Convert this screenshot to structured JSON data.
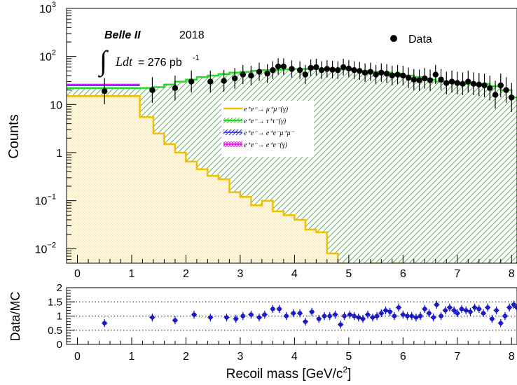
{
  "chart_data": [
    {
      "type": "histogram",
      "scale": "log",
      "xlim": [
        -0.2,
        8.1
      ],
      "ylim": [
        0.005,
        1000
      ],
      "ylabel": "Counts",
      "y_ticks": [
        {
          "value": 1000,
          "base": "10",
          "exp": "3"
        },
        {
          "value": 100,
          "base": "10",
          "exp": "2"
        },
        {
          "value": 10,
          "base": "10",
          "exp": ""
        },
        {
          "value": 1,
          "base": "1",
          "exp": ""
        },
        {
          "value": 0.1,
          "base": "10",
          "exp": "−1"
        },
        {
          "value": 0.01,
          "base": "10",
          "exp": "−2"
        }
      ],
      "x_ticks": [
        "0",
        "1",
        "2",
        "3",
        "4",
        "5",
        "6",
        "7",
        "8"
      ],
      "experiment_label": "Belle II",
      "year_label": "2018",
      "lumi": {
        "integral": "∫",
        "ldt": "Ldt",
        "value": "= 276 pb",
        "unit_exp": "-1"
      },
      "legend": {
        "data_label": "Data",
        "position": "top-right"
      },
      "stack_legend": [
        {
          "text": "e⁺e⁻→ μ⁺μ⁻(γ)",
          "color": "#f0c000",
          "fill": "#fff7dc",
          "style": "dots"
        },
        {
          "text": "e⁺e⁻→ τ⁺τ⁻(γ)",
          "color": "#22dd22",
          "fill": "#ffffff",
          "style": "hatch-green"
        },
        {
          "text": "e⁺e⁻→ e⁺e⁻μ⁺μ⁻",
          "color": "#2222dd",
          "fill": "#ffffff",
          "style": "hatch-blue"
        },
        {
          "text": "e⁺e⁻→ e⁺e⁻(γ)",
          "color": "#ee22ee",
          "fill": "#ffffff",
          "style": "grid-magenta"
        }
      ],
      "mumu_hist": {
        "bin_edges": [
          -0.2,
          1.15,
          1.4,
          1.6,
          1.8,
          2.0,
          2.2,
          2.4,
          2.6,
          2.8,
          3.0,
          3.2,
          3.4,
          3.6,
          3.8,
          4.0,
          4.2,
          4.4,
          4.6,
          4.8,
          5.0,
          5.2,
          5.4,
          5.6,
          5.8,
          6.0,
          8.1
        ],
        "values": [
          15,
          5.5,
          2.5,
          1.5,
          1.0,
          0.65,
          0.45,
          0.33,
          0.28,
          0.15,
          0.12,
          0.08,
          0.1,
          0.06,
          0.05,
          0.04,
          0.025,
          0.022,
          0.008,
          0.005,
          0.003,
          0.002,
          0.005,
          0.001,
          0.005,
          0.002
        ]
      },
      "total_hist": {
        "bin_edges": [
          -0.2,
          1.15,
          1.4,
          1.6,
          1.8,
          2.0,
          2.2,
          2.4,
          2.6,
          2.8,
          3.0,
          3.2,
          3.4,
          3.6,
          3.8,
          4.0,
          4.2,
          4.4,
          4.6,
          4.8,
          5.0,
          5.2,
          5.4,
          5.6,
          5.8,
          6.0,
          6.2,
          6.4,
          6.6,
          6.8,
          7.0,
          7.2,
          7.4,
          7.6,
          7.8,
          8.0,
          8.1
        ],
        "values": [
          22,
          22,
          23,
          26,
          30,
          33,
          37,
          40,
          43,
          46,
          48,
          50,
          52,
          53,
          54,
          55,
          55,
          55,
          55,
          54,
          52,
          50,
          48,
          46,
          44,
          40,
          37,
          33,
          30,
          28,
          27,
          27,
          27,
          24,
          20,
          14
        ]
      },
      "top_lines": {
        "pink": 26,
        "blue": 25,
        "green": 22
      },
      "data_points": [
        {
          "x": 0.5,
          "y": 19
        },
        {
          "x": 1.38,
          "y": 20
        },
        {
          "x": 1.8,
          "y": 22
        },
        {
          "x": 2.1,
          "y": 30
        },
        {
          "x": 2.45,
          "y": 30
        },
        {
          "x": 2.7,
          "y": 31
        },
        {
          "x": 2.9,
          "y": 35
        },
        {
          "x": 3.05,
          "y": 42
        },
        {
          "x": 3.2,
          "y": 40
        },
        {
          "x": 3.35,
          "y": 48
        },
        {
          "x": 3.5,
          "y": 44
        },
        {
          "x": 3.6,
          "y": 52
        },
        {
          "x": 3.7,
          "y": 62
        },
        {
          "x": 3.8,
          "y": 62
        },
        {
          "x": 3.95,
          "y": 55
        },
        {
          "x": 4.1,
          "y": 52
        },
        {
          "x": 4.2,
          "y": 42
        },
        {
          "x": 4.3,
          "y": 58
        },
        {
          "x": 4.4,
          "y": 60
        },
        {
          "x": 4.5,
          "y": 52
        },
        {
          "x": 4.6,
          "y": 55
        },
        {
          "x": 4.7,
          "y": 53
        },
        {
          "x": 4.8,
          "y": 52
        },
        {
          "x": 4.9,
          "y": 60
        },
        {
          "x": 5.0,
          "y": 56
        },
        {
          "x": 5.1,
          "y": 52
        },
        {
          "x": 5.2,
          "y": 50
        },
        {
          "x": 5.3,
          "y": 46
        },
        {
          "x": 5.4,
          "y": 48
        },
        {
          "x": 5.5,
          "y": 42
        },
        {
          "x": 5.6,
          "y": 46
        },
        {
          "x": 5.7,
          "y": 44
        },
        {
          "x": 5.8,
          "y": 40
        },
        {
          "x": 5.9,
          "y": 42
        },
        {
          "x": 6.0,
          "y": 40
        },
        {
          "x": 6.1,
          "y": 36
        },
        {
          "x": 6.2,
          "y": 33
        },
        {
          "x": 6.3,
          "y": 32
        },
        {
          "x": 6.4,
          "y": 35
        },
        {
          "x": 6.5,
          "y": 32
        },
        {
          "x": 6.6,
          "y": 42
        },
        {
          "x": 6.7,
          "y": 33
        },
        {
          "x": 6.8,
          "y": 28
        },
        {
          "x": 6.9,
          "y": 30
        },
        {
          "x": 7.0,
          "y": 28
        },
        {
          "x": 7.1,
          "y": 27
        },
        {
          "x": 7.2,
          "y": 30
        },
        {
          "x": 7.3,
          "y": 27
        },
        {
          "x": 7.4,
          "y": 26
        },
        {
          "x": 7.5,
          "y": 25
        },
        {
          "x": 7.6,
          "y": 22
        },
        {
          "x": 7.7,
          "y": 16
        },
        {
          "x": 7.8,
          "y": 25
        },
        {
          "x": 7.9,
          "y": 20
        },
        {
          "x": 8.0,
          "y": 14
        }
      ]
    },
    {
      "type": "scatter",
      "ylabel": "Data/MC",
      "xlabel": "Recoil mass [GeV/c",
      "xlabel_sup": "2",
      "xlabel_end": "]",
      "xlim": [
        -0.2,
        8.1
      ],
      "ylim": [
        0,
        2
      ],
      "y_ticks": [
        "0",
        "0.5",
        "1",
        "1.5",
        "2"
      ],
      "x_ticks": [
        "0",
        "1",
        "2",
        "3",
        "4",
        "5",
        "6",
        "7",
        "8"
      ],
      "reference_lines": [
        0.5,
        1.0,
        1.5
      ],
      "points": [
        {
          "x": 0.5,
          "y": 0.75
        },
        {
          "x": 1.38,
          "y": 0.95
        },
        {
          "x": 1.8,
          "y": 0.85
        },
        {
          "x": 2.15,
          "y": 1.05
        },
        {
          "x": 2.45,
          "y": 0.95
        },
        {
          "x": 2.75,
          "y": 0.95
        },
        {
          "x": 2.92,
          "y": 0.9
        },
        {
          "x": 3.05,
          "y": 1.0
        },
        {
          "x": 3.2,
          "y": 1.05
        },
        {
          "x": 3.35,
          "y": 0.95
        },
        {
          "x": 3.45,
          "y": 1.05
        },
        {
          "x": 3.6,
          "y": 1.25
        },
        {
          "x": 3.72,
          "y": 1.25
        },
        {
          "x": 3.85,
          "y": 1.0
        },
        {
          "x": 3.98,
          "y": 1.1
        },
        {
          "x": 4.1,
          "y": 1.1
        },
        {
          "x": 4.2,
          "y": 0.8
        },
        {
          "x": 4.32,
          "y": 1.15
        },
        {
          "x": 4.45,
          "y": 0.9
        },
        {
          "x": 4.55,
          "y": 1.0
        },
        {
          "x": 4.65,
          "y": 1.0
        },
        {
          "x": 4.75,
          "y": 1.05
        },
        {
          "x": 4.85,
          "y": 0.7
        },
        {
          "x": 4.92,
          "y": 1.0
        },
        {
          "x": 5.02,
          "y": 1.05
        },
        {
          "x": 5.1,
          "y": 1.0
        },
        {
          "x": 5.18,
          "y": 0.95
        },
        {
          "x": 5.26,
          "y": 0.9
        },
        {
          "x": 5.35,
          "y": 1.05
        },
        {
          "x": 5.44,
          "y": 0.95
        },
        {
          "x": 5.52,
          "y": 1.0
        },
        {
          "x": 5.6,
          "y": 1.1
        },
        {
          "x": 5.68,
          "y": 1.2
        },
        {
          "x": 5.76,
          "y": 1.15
        },
        {
          "x": 5.84,
          "y": 1.0
        },
        {
          "x": 5.92,
          "y": 1.3
        },
        {
          "x": 6.0,
          "y": 1.05
        },
        {
          "x": 6.08,
          "y": 1.0
        },
        {
          "x": 6.16,
          "y": 1.0
        },
        {
          "x": 6.24,
          "y": 0.95
        },
        {
          "x": 6.32,
          "y": 1.0
        },
        {
          "x": 6.4,
          "y": 1.25
        },
        {
          "x": 6.48,
          "y": 1.1
        },
        {
          "x": 6.56,
          "y": 0.95
        },
        {
          "x": 6.62,
          "y": 1.4
        },
        {
          "x": 6.7,
          "y": 1.0
        },
        {
          "x": 6.78,
          "y": 1.2
        },
        {
          "x": 6.86,
          "y": 1.3
        },
        {
          "x": 6.94,
          "y": 1.2
        },
        {
          "x": 7.0,
          "y": 1.1
        },
        {
          "x": 7.08,
          "y": 1.25
        },
        {
          "x": 7.16,
          "y": 1.2
        },
        {
          "x": 7.24,
          "y": 1.15
        },
        {
          "x": 7.32,
          "y": 1.3
        },
        {
          "x": 7.4,
          "y": 1.25
        },
        {
          "x": 7.48,
          "y": 1.1
        },
        {
          "x": 7.56,
          "y": 1.3
        },
        {
          "x": 7.64,
          "y": 0.9
        },
        {
          "x": 7.72,
          "y": 1.2
        },
        {
          "x": 7.8,
          "y": 0.75
        },
        {
          "x": 7.88,
          "y": 1.0
        },
        {
          "x": 7.96,
          "y": 1.3
        },
        {
          "x": 8.04,
          "y": 1.4
        },
        {
          "x": 8.1,
          "y": 1.3
        }
      ]
    }
  ]
}
